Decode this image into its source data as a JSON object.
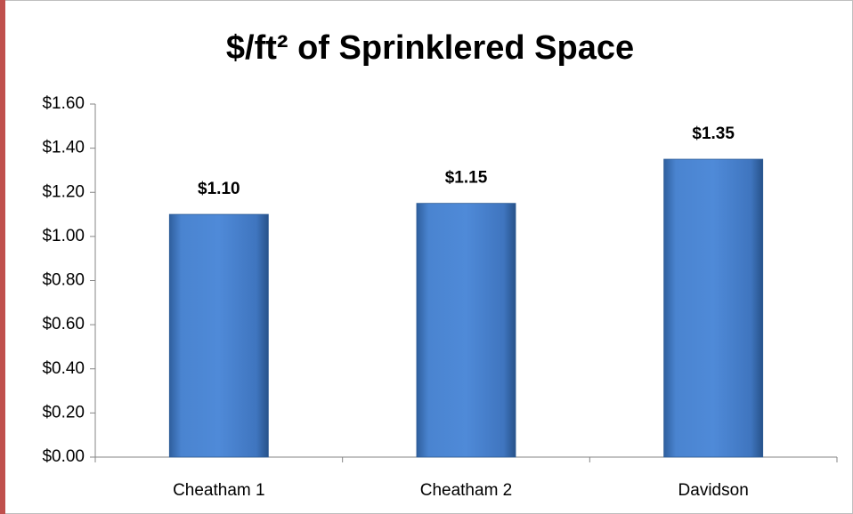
{
  "chart_data": {
    "type": "bar",
    "title": "$/ft² of Sprinklered Space",
    "categories": [
      "Cheatham 1",
      "Cheatham 2",
      "Davidson"
    ],
    "values": [
      1.1,
      1.15,
      1.35
    ],
    "value_labels": [
      "$1.10",
      "$1.15",
      "$1.35"
    ],
    "color": "#4f81bd",
    "ylim": [
      0,
      1.6
    ],
    "yticks": [
      {
        "value": 0,
        "label": "$0.00"
      },
      {
        "value": 0.2,
        "label": "$0.20"
      },
      {
        "value": 0.4,
        "label": "$0.40"
      },
      {
        "value": 0.6,
        "label": "$0.60"
      },
      {
        "value": 0.8,
        "label": "$0.80"
      },
      {
        "value": 1.0,
        "label": "$1.00"
      },
      {
        "value": 1.2,
        "label": "$1.20"
      },
      {
        "value": 1.4,
        "label": "$1.40"
      },
      {
        "value": 1.6,
        "label": "$1.60"
      }
    ],
    "grid": false
  }
}
